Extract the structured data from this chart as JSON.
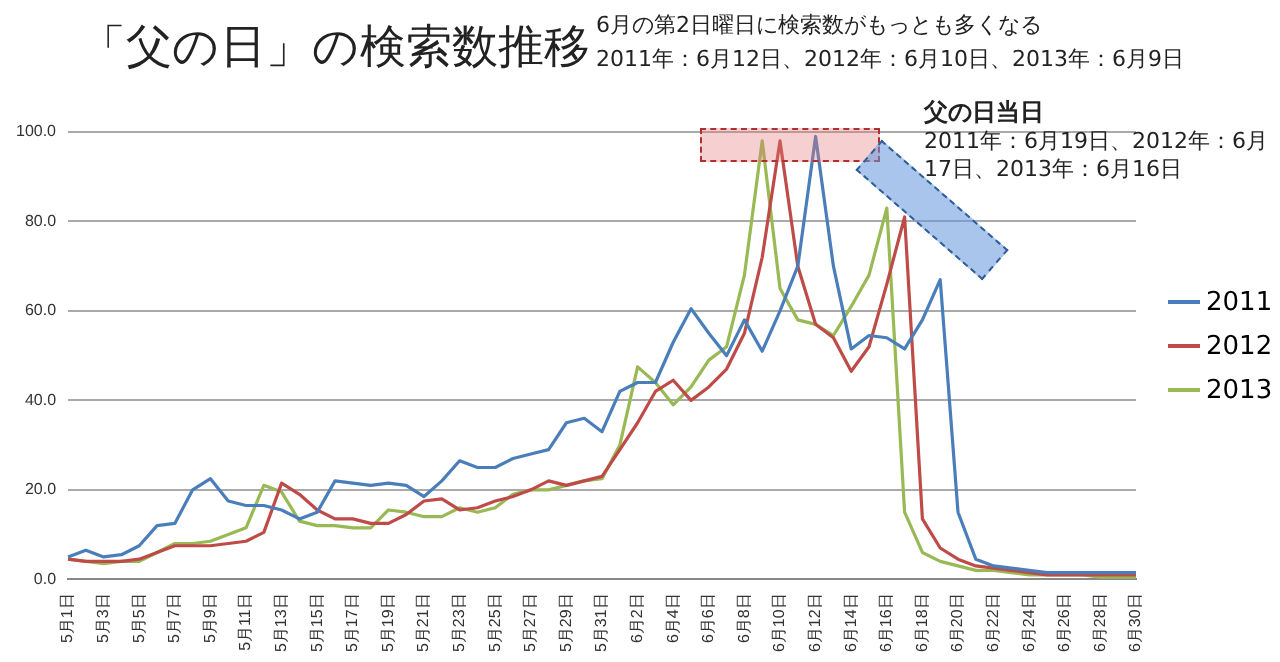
{
  "chart_data": {
    "type": "line",
    "title": "「父の日」の検索数推移",
    "categories": [
      "5月1日",
      null,
      "5月3日",
      null,
      "5月5日",
      null,
      "5月7日",
      null,
      "5月9日",
      null,
      "5月11日",
      null,
      "5月13日",
      null,
      "5月15日",
      null,
      "5月17日",
      null,
      "5月19日",
      null,
      "5月21日",
      null,
      "5月23日",
      null,
      "5月25日",
      null,
      "5月27日",
      null,
      "5月29日",
      null,
      "5月31日",
      null,
      "6月2日",
      null,
      "6月4日",
      null,
      "6月6日",
      null,
      "6月8日",
      null,
      "6月10日",
      null,
      "6月12日",
      null,
      "6月14日",
      null,
      "6月16日",
      null,
      "6月18日",
      null,
      "6月20日",
      null,
      "6月22日",
      null,
      "6月24日",
      null,
      "6月26日",
      null,
      "6月28日",
      null,
      "6月30日"
    ],
    "series": [
      {
        "name": "2011",
        "color": "#4a7ebb",
        "values": [
          5,
          6.5,
          5,
          5.5,
          7.5,
          12,
          12.5,
          20,
          22.5,
          17.5,
          16.5,
          16.5,
          15.5,
          13.5,
          15,
          22,
          21.5,
          21,
          21.5,
          21,
          18.5,
          22,
          26.5,
          25,
          25,
          27,
          28,
          29,
          35,
          36,
          33,
          42,
          44,
          44,
          53,
          60.5,
          55,
          50,
          58,
          51,
          60,
          70,
          99,
          70,
          51.5,
          54.5,
          54,
          51.5,
          58,
          67,
          15,
          4.5,
          3,
          2.5,
          2,
          1.5,
          1.5,
          1.5,
          1.5,
          1.5,
          1.5
        ]
      },
      {
        "name": "2012",
        "color": "#be4b48",
        "values": [
          4.5,
          4,
          4,
          4,
          4.5,
          6,
          7.5,
          7.5,
          7.5,
          8,
          8.5,
          10.5,
          21.5,
          19,
          15.5,
          13.5,
          13.5,
          12.5,
          12.5,
          14.5,
          17.5,
          18,
          15.5,
          16,
          17.5,
          18.5,
          20,
          22,
          21,
          22,
          23,
          29,
          35,
          42,
          44.5,
          40,
          43,
          47,
          55,
          72,
          98,
          70,
          57,
          54,
          46.5,
          52,
          66,
          81,
          13.5,
          7,
          4.5,
          3,
          2.5,
          2,
          1.5,
          1,
          1,
          1,
          1,
          1,
          1
        ]
      },
      {
        "name": "2013",
        "color": "#98b954",
        "values": [
          4.5,
          4,
          3.5,
          4,
          4,
          6,
          8,
          8,
          8.5,
          10,
          11.5,
          21,
          19.5,
          13,
          12,
          12,
          11.5,
          11.5,
          15.5,
          15,
          14,
          14,
          16,
          15,
          16,
          19,
          20,
          20,
          21,
          22,
          22.5,
          30,
          47.5,
          44,
          39,
          43,
          49,
          52,
          68,
          98,
          65,
          58,
          57,
          54.5,
          61,
          68,
          83,
          15,
          6,
          4,
          3,
          2,
          2,
          1.5,
          1,
          1,
          1,
          1,
          0.5,
          0.5,
          0.5
        ]
      }
    ],
    "ylim": [
      0,
      100
    ],
    "yticks": [
      {
        "value": 0,
        "label": "0.0"
      },
      {
        "value": 20,
        "label": "20.0"
      },
      {
        "value": 40,
        "label": "40.0"
      },
      {
        "value": 60,
        "label": "60.0"
      },
      {
        "value": 80,
        "label": "80.0"
      },
      {
        "value": 100,
        "label": "100.0"
      }
    ],
    "grid": "y",
    "legend": "right",
    "marker": "none",
    "line_style": "solid",
    "annotations": [
      "6月の第2日曜日に検索数がもっとも多くなる\n2011年：6月12日、2012年：6月10日、2013年：6月9日",
      "父の日当日",
      "2011年：6月19日、2012年：6月17日、2013年：6月16日"
    ]
  }
}
